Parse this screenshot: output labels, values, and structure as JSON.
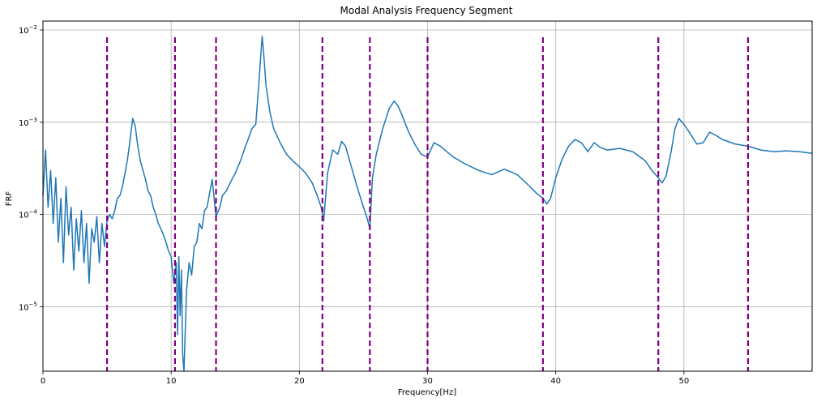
{
  "chart_data": {
    "type": "line",
    "title": "Modal Analysis Frequency Segment",
    "xlabel": "Frequency[Hz]",
    "ylabel": "FRF",
    "xlim": [
      0,
      60
    ],
    "ylim": [
      2e-06,
      0.0125
    ],
    "yscale": "log",
    "grid": true,
    "colors": {
      "series": "#1f77b4",
      "segments": "#800080",
      "grid": "#b0b0b0"
    },
    "x_ticks": [
      {
        "value": 0,
        "label": "0"
      },
      {
        "value": 10,
        "label": "10"
      },
      {
        "value": 20,
        "label": "20"
      },
      {
        "value": 30,
        "label": "30"
      },
      {
        "value": 40,
        "label": "40"
      },
      {
        "value": 50,
        "label": "50"
      }
    ],
    "y_ticks": [
      {
        "value": 1e-05,
        "base": "10",
        "exp": "−5"
      },
      {
        "value": 0.0001,
        "base": "10",
        "exp": "−4"
      },
      {
        "value": 0.001,
        "base": "10",
        "exp": "−3"
      },
      {
        "value": 0.01,
        "base": "10",
        "exp": "−2"
      }
    ],
    "segment_boundaries": [
      5.0,
      10.3,
      13.5,
      21.8,
      25.5,
      30.0,
      39.0,
      48.0,
      55.0
    ],
    "series": [
      {
        "x": [
          0.0,
          0.2,
          0.4,
          0.6,
          0.8,
          1.0,
          1.2,
          1.4,
          1.6,
          1.8,
          2.0,
          2.2,
          2.4,
          2.6,
          2.8,
          3.0,
          3.2,
          3.4,
          3.6,
          3.8,
          4.0,
          4.2,
          4.4,
          4.6,
          4.8,
          5.0,
          5.2,
          5.4,
          5.6,
          5.8,
          6.0,
          6.2,
          6.4,
          6.6,
          6.8,
          7.0,
          7.2,
          7.4,
          7.6,
          7.8,
          8.0,
          8.2,
          8.4,
          8.6,
          8.8,
          9.0,
          9.2,
          9.4,
          9.6,
          9.8,
          10.0,
          10.2,
          10.4,
          10.5,
          10.6,
          10.7,
          10.8,
          10.9,
          11.0,
          11.2,
          11.4,
          11.6,
          11.8,
          12.0,
          12.2,
          12.4,
          12.6,
          12.8,
          13.0,
          13.2,
          13.5,
          13.8,
          14.0,
          14.3,
          14.6,
          15.0,
          15.4,
          15.8,
          16.0,
          16.3,
          16.6,
          16.8,
          17.0,
          17.1,
          17.2,
          17.4,
          17.7,
          18.0,
          18.5,
          19.0,
          19.5,
          20.0,
          20.5,
          21.0,
          21.4,
          21.7,
          21.9,
          22.2,
          22.6,
          23.0,
          23.3,
          23.6,
          24.0,
          24.5,
          25.0,
          25.3,
          25.5,
          25.7,
          26.0,
          26.5,
          27.0,
          27.4,
          27.7,
          28.0,
          28.5,
          29.0,
          29.5,
          30.0,
          30.5,
          31.0,
          31.5,
          32.0,
          33.0,
          34.0,
          35.0,
          36.0,
          37.0,
          38.0,
          38.5,
          39.0,
          39.3,
          39.6,
          40.0,
          40.5,
          41.0,
          41.5,
          42.0,
          42.5,
          43.0,
          43.5,
          44.0,
          45.0,
          46.0,
          47.0,
          47.5,
          48.0,
          48.3,
          48.6,
          49.0,
          49.3,
          49.6,
          50.0,
          50.5,
          51.0,
          51.5,
          52.0,
          52.5,
          53.0,
          54.0,
          55.0,
          56.0,
          57.0,
          58.0,
          59.0,
          60.0
        ],
        "y": [
          0.00016,
          0.0005,
          0.00012,
          0.0003,
          8e-05,
          0.00025,
          5e-05,
          0.00015,
          3e-05,
          0.0002,
          6e-05,
          0.00012,
          2.5e-05,
          9e-05,
          4e-05,
          0.00011,
          3e-05,
          8e-05,
          1.8e-05,
          7e-05,
          5e-05,
          9.5e-05,
          3e-05,
          8e-05,
          4.5e-05,
          8.5e-05,
          0.0001,
          9e-05,
          0.00011,
          0.00015,
          0.00016,
          0.0002,
          0.00028,
          0.0004,
          0.00065,
          0.0011,
          0.0009,
          0.00055,
          0.00038,
          0.0003,
          0.00024,
          0.00018,
          0.00016,
          0.00012,
          0.0001,
          8e-05,
          7e-05,
          6e-05,
          5e-05,
          4e-05,
          3.5e-05,
          1.8e-05,
          3e-05,
          5e-06,
          3.5e-05,
          8e-06,
          2.5e-05,
          3e-06,
          2e-06,
          1.5e-05,
          3e-05,
          2.2e-05,
          4.5e-05,
          5e-05,
          8e-05,
          7e-05,
          0.00011,
          0.00012,
          0.00017,
          0.00024,
          9.5e-05,
          0.00012,
          0.00016,
          0.00018,
          0.00022,
          0.00028,
          0.00038,
          0.00055,
          0.00065,
          0.00085,
          0.00095,
          0.0022,
          0.0055,
          0.0085,
          0.006,
          0.0025,
          0.0013,
          0.00085,
          0.0006,
          0.00045,
          0.00038,
          0.00033,
          0.00028,
          0.00022,
          0.00016,
          0.00012,
          8.5e-05,
          0.00028,
          0.0005,
          0.00045,
          0.00062,
          0.00055,
          0.00035,
          0.0002,
          0.00012,
          9e-05,
          7e-05,
          0.00025,
          0.00045,
          0.00085,
          0.0014,
          0.0017,
          0.0015,
          0.0012,
          0.0008,
          0.00058,
          0.00045,
          0.00042,
          0.0006,
          0.00055,
          0.00048,
          0.00042,
          0.00035,
          0.0003,
          0.00027,
          0.00031,
          0.00027,
          0.0002,
          0.00017,
          0.00015,
          0.00013,
          0.00015,
          0.00025,
          0.0004,
          0.00055,
          0.00065,
          0.0006,
          0.00048,
          0.0006,
          0.00053,
          0.0005,
          0.00052,
          0.00048,
          0.00038,
          0.0003,
          0.00025,
          0.00022,
          0.00026,
          0.00048,
          0.00085,
          0.0011,
          0.00095,
          0.00075,
          0.00058,
          0.0006,
          0.00078,
          0.00072,
          0.00065,
          0.00058,
          0.00055,
          0.0005,
          0.00048,
          0.00049,
          0.00048,
          0.00046
        ]
      }
    ]
  }
}
